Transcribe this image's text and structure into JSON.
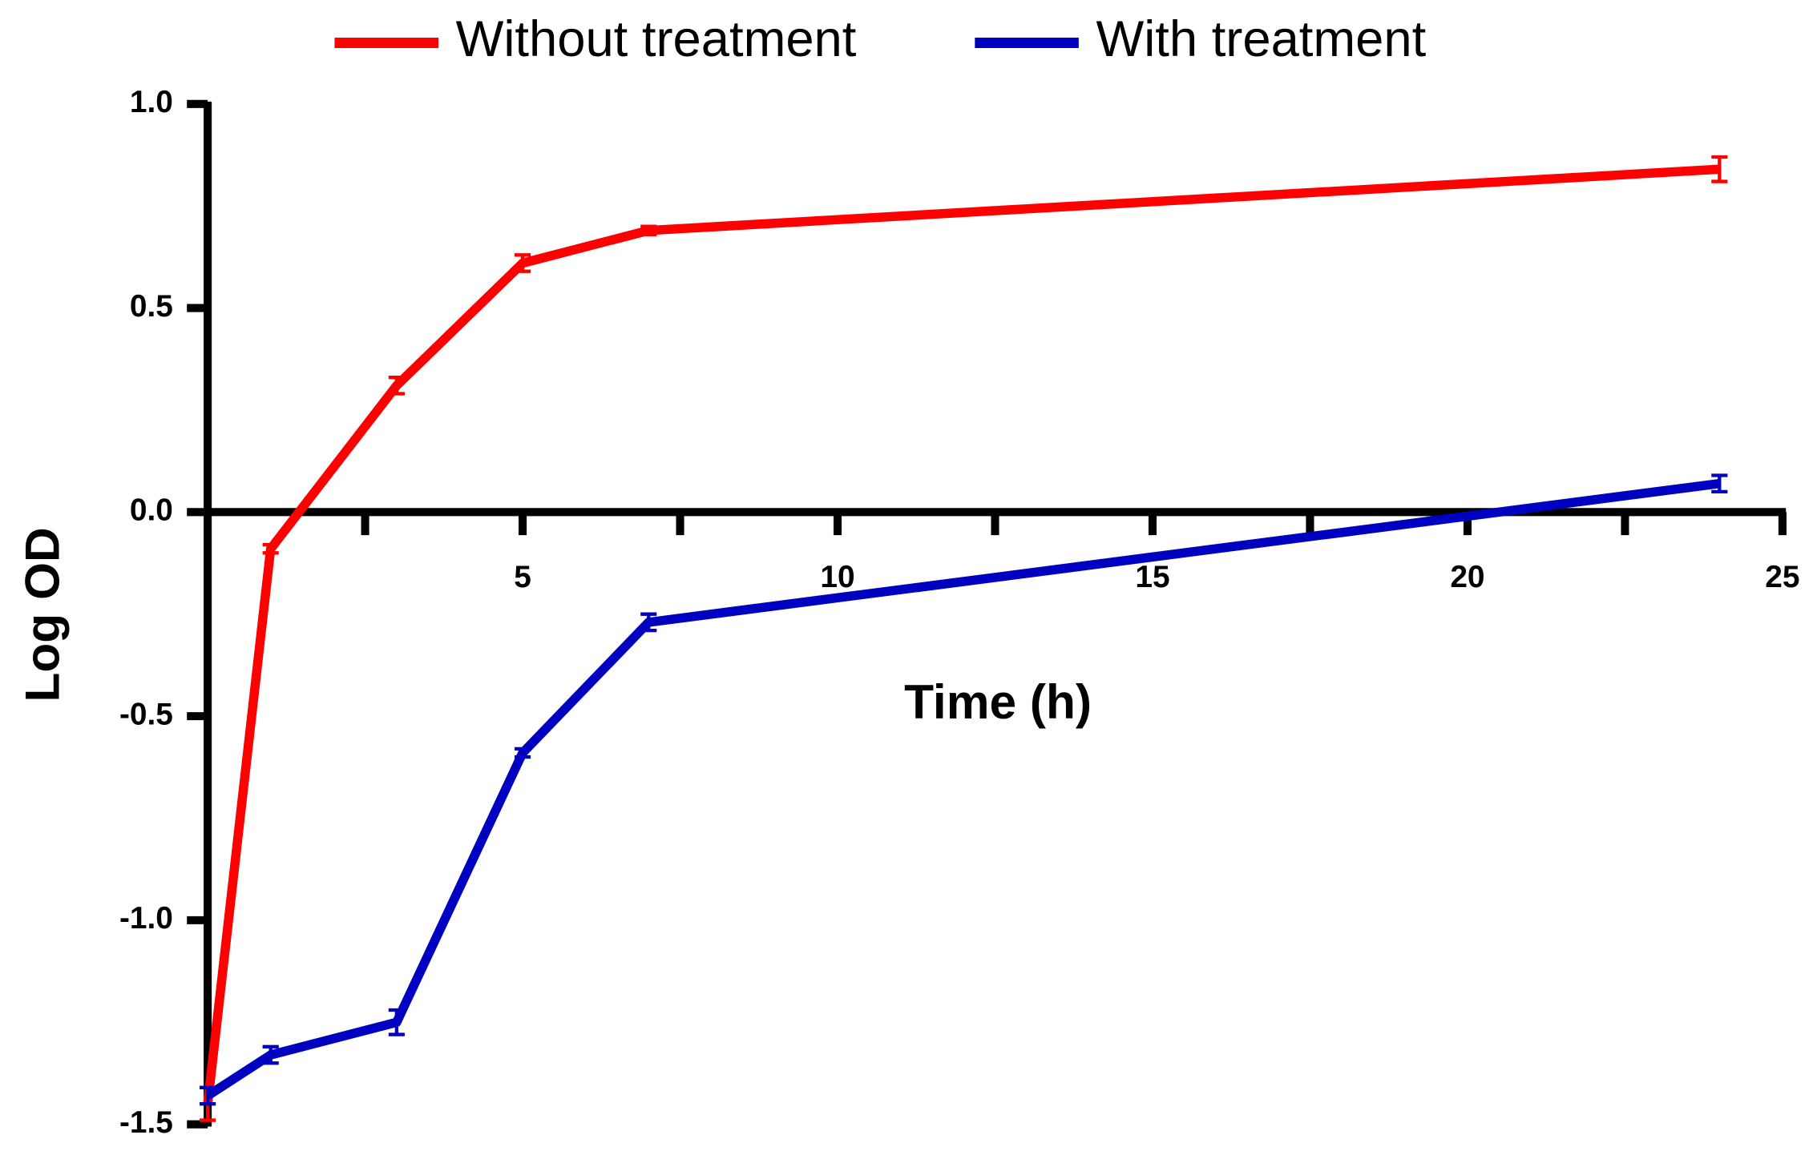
{
  "chart_data": {
    "type": "line",
    "x_label": "Time (h)",
    "y_label": "Log OD",
    "x": [
      0,
      1,
      3,
      5,
      7,
      24
    ],
    "series": [
      {
        "name": "Without treatment",
        "color": "#ff0000",
        "values": [
          -1.45,
          -0.09,
          0.31,
          0.61,
          0.69,
          0.84
        ],
        "errors": [
          0.04,
          0.01,
          0.02,
          0.02,
          0.01,
          0.03
        ]
      },
      {
        "name": "With treatment",
        "color": "#0000c0",
        "values": [
          -1.43,
          -1.33,
          -1.25,
          -0.59,
          -0.27,
          0.07
        ],
        "errors": [
          0.02,
          0.02,
          0.03,
          0.01,
          0.02,
          0.02
        ]
      }
    ],
    "xlim": [
      0,
      25
    ],
    "xticks": [
      5,
      10,
      15,
      20,
      25
    ],
    "xminorticks": [
      2.5,
      7.5,
      12.5,
      17.5,
      22.5
    ],
    "ylim": [
      -1.5,
      1.0
    ],
    "yticks": [
      {
        "value": 1.0,
        "label": "1.0"
      },
      {
        "value": 0.5,
        "label": "0.5"
      },
      {
        "value": 0.0,
        "label": "0.0"
      },
      {
        "value": -0.5,
        "label": "-0.5"
      },
      {
        "value": -1.0,
        "label": "-1.0"
      },
      {
        "value": -1.5,
        "label": "-1.5"
      }
    ],
    "legend": "top",
    "grid": false
  }
}
